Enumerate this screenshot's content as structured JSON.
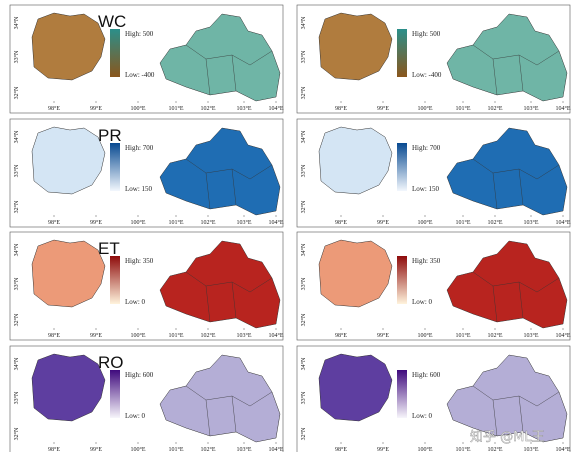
{
  "rows": [
    {
      "label": "WC",
      "colors": {
        "high": "#2b8f8a",
        "low": "#8a561c",
        "left_map": "#b07c3e",
        "right_map": "#6fb5a6"
      },
      "columns": [
        {
          "high": "High: 500",
          "low": "Low: -400"
        },
        {
          "high": "High: 500",
          "low": "Low: -400"
        }
      ]
    },
    {
      "label": "PR",
      "colors": {
        "high": "#084a91",
        "low": "#f2f7fd",
        "left_map": "#d4e5f4",
        "right_map": "#1f6db3"
      },
      "columns": [
        {
          "high": "High: 700",
          "low": "Low: 150"
        },
        {
          "high": "High: 700",
          "low": "Low: 150"
        }
      ]
    },
    {
      "label": "ET",
      "colors": {
        "high": "#8e0b0b",
        "low": "#fff3dc",
        "left_map": "#ec9a78",
        "right_map": "#b8241f"
      },
      "columns": [
        {
          "high": "High: 350",
          "low": "Low: 0"
        },
        {
          "high": "High: 350",
          "low": "Low: 0"
        }
      ]
    },
    {
      "label": "RO",
      "colors": {
        "high": "#3f0a7d",
        "low": "#f7f5fb",
        "left_map": "#5e3ea0",
        "right_map": "#b4aed6"
      },
      "columns": [
        {
          "high": "High: 600",
          "low": "Low: 0"
        },
        {
          "high": "High: 600",
          "low": "Low: 0"
        }
      ]
    }
  ],
  "x_ticks": [
    "98°E",
    "99°E",
    "100°E",
    "101°E",
    "102°E",
    "103°E",
    "104°E"
  ],
  "y_ticks": [
    "34°N",
    "33°N",
    "32°N"
  ],
  "watermark": "知乎 @ML王"
}
